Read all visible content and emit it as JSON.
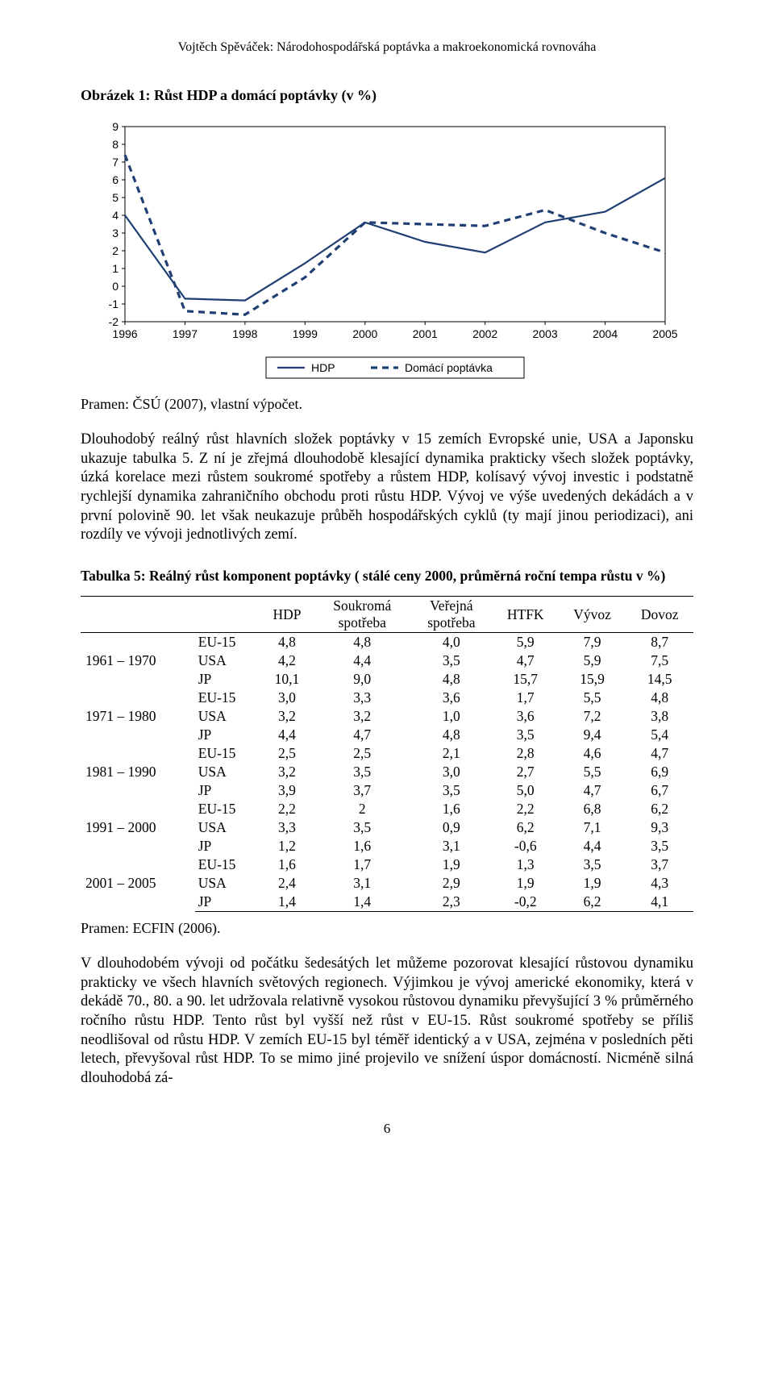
{
  "running_head": "Vojtěch Spěváček: Národohospodářská poptávka a makroekonomická rovnováha",
  "figure": {
    "title": "Obrázek 1: Růst HDP a domácí poptávky (v %)",
    "source": "Pramen: ČSÚ (2007), vlastní výpočet.",
    "type": "line",
    "x_labels": [
      "1996",
      "1997",
      "1998",
      "1999",
      "2000",
      "2001",
      "2002",
      "2003",
      "2004",
      "2005"
    ],
    "y_ticks": [
      -2,
      -1,
      0,
      1,
      2,
      3,
      4,
      5,
      6,
      7,
      8,
      9
    ],
    "ylim": [
      -2,
      9
    ],
    "y_tick_step": 1,
    "series": [
      {
        "name": "HDP",
        "label": "HDP",
        "dash": "none",
        "width": 2.2,
        "color": "#1f3f73",
        "values": [
          4.0,
          -0.7,
          -0.8,
          1.3,
          3.6,
          2.5,
          1.9,
          3.6,
          4.2,
          6.1
        ]
      },
      {
        "name": "Domácí poptávka",
        "label": "Domácí poptávka",
        "dash": "8 6",
        "width": 3.2,
        "color": "#1f3f73",
        "values": [
          7.4,
          -1.4,
          -1.6,
          0.5,
          3.6,
          3.5,
          3.4,
          4.3,
          3.0,
          1.9
        ]
      }
    ],
    "axis_color": "#000000",
    "tick_font_size": 14,
    "legend_items": [
      "HDP",
      "Domácí poptávka"
    ],
    "background": "#ffffff"
  },
  "para1": "Dlouhodobý reálný růst hlavních složek poptávky v 15 zemích Evropské unie, USA a Japonsku ukazuje tabulka 5. Z ní je zřejmá dlouhodobě klesající dynamika prakticky všech složek poptávky, úzká korelace mezi růstem soukromé spotřeby a růstem HDP, kolísavý vývoj investic i podstatně rychlejší dynamika zahraničního obchodu proti růstu HDP. Vývoj ve výše uvedených dekádách a v první polovině 90. let však neukazuje průběh hospodářských cyklů (ty mají jinou periodizaci), ani rozdíly ve vývoji jednotlivých zemí.",
  "table": {
    "title": "Tabulka 5: Reálný růst komponent poptávky ( stálé ceny 2000, průměrná roční tempa růstu v %)",
    "columns": [
      "",
      "",
      "HDP",
      "Soukromá spotřeba",
      "Veřejná spotřeba",
      "HTFK",
      "Vývoz",
      "Dovoz"
    ],
    "periods": [
      {
        "period": "1961 – 1970",
        "rows": [
          [
            "EU-15",
            "4,8",
            "4,8",
            "4,0",
            "5,9",
            "7,9",
            "8,7"
          ],
          [
            "USA",
            "4,2",
            "4,4",
            "3,5",
            "4,7",
            "5,9",
            "7,5"
          ],
          [
            "JP",
            "10,1",
            "9,0",
            "4,8",
            "15,7",
            "15,9",
            "14,5"
          ]
        ]
      },
      {
        "period": "1971 – 1980",
        "rows": [
          [
            "EU-15",
            "3,0",
            "3,3",
            "3,6",
            "1,7",
            "5,5",
            "4,8"
          ],
          [
            "USA",
            "3,2",
            "3,2",
            "1,0",
            "3,6",
            "7,2",
            "3,8"
          ],
          [
            "JP",
            "4,4",
            "4,7",
            "4,8",
            "3,5",
            "9,4",
            "5,4"
          ]
        ]
      },
      {
        "period": "1981 – 1990",
        "rows": [
          [
            "EU-15",
            "2,5",
            "2,5",
            "2,1",
            "2,8",
            "4,6",
            "4,7"
          ],
          [
            "USA",
            "3,2",
            "3,5",
            "3,0",
            "2,7",
            "5,5",
            "6,9"
          ],
          [
            "JP",
            "3,9",
            "3,7",
            "3,5",
            "5,0",
            "4,7",
            "6,7"
          ]
        ]
      },
      {
        "period": "1991 – 2000",
        "rows": [
          [
            "EU-15",
            "2,2",
            "2",
            "1,6",
            "2,2",
            "6,8",
            "6,2"
          ],
          [
            "USA",
            "3,3",
            "3,5",
            "0,9",
            "6,2",
            "7,1",
            "9,3"
          ],
          [
            "JP",
            "1,2",
            "1,6",
            "3,1",
            "-0,6",
            "4,4",
            "3,5"
          ]
        ]
      },
      {
        "period": "2001 – 2005",
        "rows": [
          [
            "EU-15",
            "1,6",
            "1,7",
            "1,9",
            "1,3",
            "3,5",
            "3,7"
          ],
          [
            "USA",
            "2,4",
            "3,1",
            "2,9",
            "1,9",
            "1,9",
            "4,3"
          ],
          [
            "JP",
            "1,4",
            "1,4",
            "2,3",
            "-0,2",
            "6,2",
            "4,1"
          ]
        ]
      }
    ],
    "source": "Pramen: ECFIN (2006)."
  },
  "para2": "V dlouhodobém vývoji od počátku šedesátých let můžeme pozorovat klesající růstovou dynamiku prakticky ve všech hlavních světových regionech. Výjimkou je vývoj americké ekonomiky, která v dekádě 70., 80. a 90. let udržovala relativně vysokou růstovou dynamiku převyšující 3 % průměrného ročního růstu HDP. Tento růst byl vyšší než růst v EU-15. Růst soukromé spotřeby se příliš neodlišoval od růstu HDP. V zemích EU-15 byl téměř identický a v USA, zejména v posledních pěti letech, převyšoval růst HDP. To se mimo jiné projevilo ve snížení úspor domácností. Nicméně silná dlouhodobá zá-",
  "page_number": "6"
}
